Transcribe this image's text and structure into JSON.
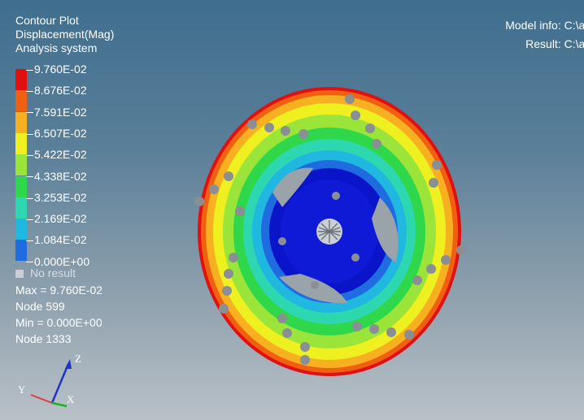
{
  "legend": {
    "title_lines": [
      "Contour Plot",
      "Displacement(Mag)",
      "Analysis system"
    ],
    "entries": [
      {
        "value": "9.760E-02",
        "color": "#e01010"
      },
      {
        "value": "8.676E-02",
        "color": "#f06010"
      },
      {
        "value": "7.591E-02",
        "color": "#f7b020"
      },
      {
        "value": "6.507E-02",
        "color": "#eef020"
      },
      {
        "value": "5.422E-02",
        "color": "#9be43a"
      },
      {
        "value": "4.338E-02",
        "color": "#2fd84a"
      },
      {
        "value": "3.253E-02",
        "color": "#2dd8b0"
      },
      {
        "value": "2.169E-02",
        "color": "#20b8e0"
      },
      {
        "value": "1.084E-02",
        "color": "#1f6be0"
      },
      {
        "value": "0.000E+00",
        "color": "#0a14c8"
      }
    ],
    "no_result": "No result"
  },
  "stats": {
    "max": "Max = 9.760E-02",
    "max_node": "Node 599",
    "min": "Min = 0.000E+00",
    "min_node": "Node 1333"
  },
  "model_info": {
    "model": "Model info: C:\\ashok's ba",
    "result": "Result: C:\\ashok's ba"
  },
  "triad": {
    "z": "Z",
    "y": "Y",
    "x": "X"
  },
  "colors": {
    "background_top": "#3f6e8e",
    "background_bottom": "#b9c1c8",
    "hub": "#0a14c8",
    "bolt": "#8a8f94"
  }
}
